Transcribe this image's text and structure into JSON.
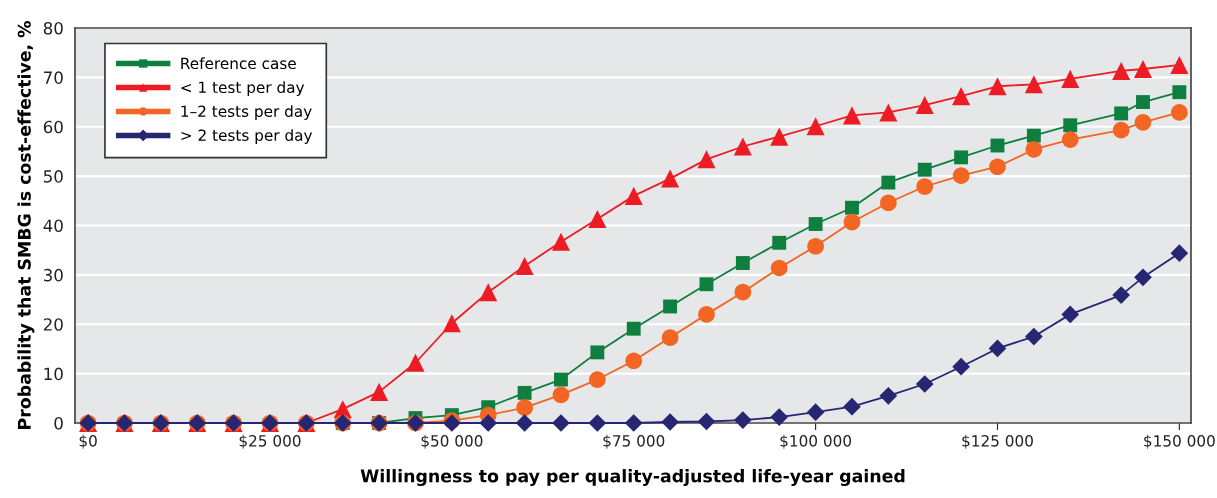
{
  "chart_data": {
    "type": "line",
    "xlabel": "Willingness to pay per quality-adjusted life-year gained",
    "ylabel": "Probability that SMBG is cost-effective, %",
    "x": [
      0,
      5000,
      10000,
      15000,
      20000,
      25000,
      30000,
      35000,
      40000,
      45000,
      50000,
      55000,
      60000,
      65000,
      70000,
      75000,
      80000,
      85000,
      90000,
      95000,
      100000,
      105000,
      110000,
      115000,
      120000,
      125000,
      130000,
      135000,
      142000,
      145000,
      150000
    ],
    "series": [
      {
        "name": "Reference case",
        "color": "#0f7f3f",
        "marker": "square",
        "values": [
          null,
          null,
          null,
          null,
          null,
          null,
          null,
          0,
          0,
          1.0,
          1.6,
          3.2,
          6.1,
          8.8,
          14.3,
          19.1,
          23.6,
          28.1,
          32.4,
          36.5,
          40.3,
          43.6,
          48.7,
          51.3,
          53.8,
          56.2,
          58.2,
          60.3,
          62.7,
          65.0,
          67.0
        ]
      },
      {
        "name": "< 1 test per day",
        "color": "#ed1c24",
        "marker": "triangle",
        "values": [
          0,
          0,
          0,
          0,
          0,
          0,
          0,
          2.8,
          6.3,
          12.2,
          20.2,
          26.5,
          31.8,
          36.7,
          41.3,
          46.0,
          49.5,
          53.4,
          56.0,
          58.0,
          60.1,
          62.3,
          62.9,
          64.4,
          66.2,
          68.2,
          68.6,
          69.7,
          71.3,
          71.7,
          72.5
        ]
      },
      {
        "name": "1–2 tests per day",
        "color": "#f26522",
        "marker": "circle",
        "values": [
          0,
          0,
          0,
          0,
          0,
          0,
          0,
          0,
          0,
          0,
          0.5,
          1.6,
          3.1,
          5.7,
          8.8,
          12.6,
          17.3,
          22.0,
          26.5,
          31.4,
          35.8,
          40.7,
          44.6,
          47.9,
          50.1,
          51.9,
          55.4,
          57.4,
          59.3,
          60.9,
          62.9
        ]
      },
      {
        "name": "> 2 tests per day",
        "color": "#262673",
        "marker": "diamond",
        "values": [
          0,
          0,
          0,
          0,
          0,
          0,
          0,
          0,
          0,
          0,
          0,
          0,
          0,
          0,
          0,
          0,
          0.2,
          0.3,
          0.6,
          1.2,
          2.2,
          3.3,
          5.5,
          7.9,
          11.4,
          15.1,
          17.5,
          22.0,
          25.9,
          29.5,
          34.4
        ]
      }
    ],
    "xlim": [
      -1800,
      151600
    ],
    "ylim": [
      0,
      80
    ],
    "xticks": [
      {
        "value": 0,
        "label": "$0"
      },
      {
        "value": 25000,
        "label": "$25 000"
      },
      {
        "value": 50000,
        "label": "$50 000"
      },
      {
        "value": 75000,
        "label": "$75 000"
      },
      {
        "value": 100000,
        "label": "$100 000"
      },
      {
        "value": 125000,
        "label": "$125 000"
      },
      {
        "value": 150000,
        "label": "$150 000"
      }
    ],
    "yticks": [
      0,
      10,
      20,
      30,
      40,
      50,
      60,
      70,
      80
    ],
    "grid": "y",
    "legend": "top left",
    "line_style": "solid"
  }
}
